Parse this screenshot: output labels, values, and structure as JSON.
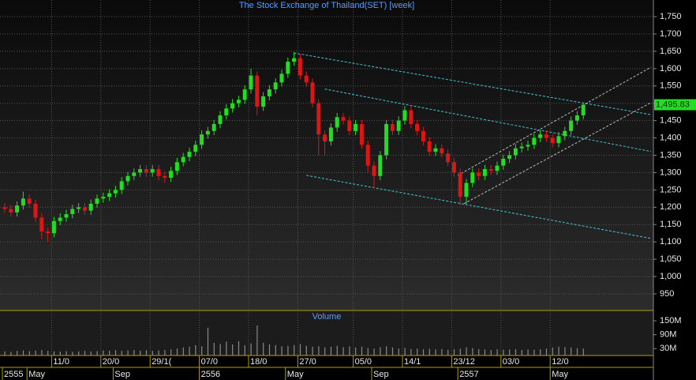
{
  "chart_data": {
    "type": "candlestick",
    "title": "The Stock Exchange of Thailand(SET) [week]",
    "up_color": "#22dd22",
    "down_color": "#dd1515",
    "categories": [
      null,
      null,
      null,
      null,
      null,
      null,
      null,
      null,
      "11/0",
      null,
      null,
      null,
      null,
      null,
      null,
      null,
      "20/0",
      null,
      null,
      null,
      null,
      null,
      null,
      null,
      "29/1(",
      null,
      null,
      null,
      null,
      null,
      null,
      null,
      "07/0",
      null,
      null,
      null,
      null,
      null,
      null,
      null,
      "18/0",
      null,
      null,
      null,
      null,
      null,
      null,
      null,
      "27/0",
      null,
      null,
      null,
      null,
      null,
      null,
      null,
      null,
      "05/0",
      null,
      null,
      null,
      null,
      null,
      null,
      null,
      "14/1",
      null,
      null,
      null,
      null,
      null,
      null,
      null,
      "23/12",
      null,
      null,
      null,
      null,
      null,
      null,
      null,
      "03/0",
      null,
      null,
      null,
      null,
      null,
      null,
      null,
      "12/0",
      null,
      null,
      null,
      null,
      null
    ],
    "periods": [
      "2555",
      null,
      null,
      null,
      "May",
      null,
      null,
      null,
      null,
      null,
      null,
      null,
      null,
      null,
      null,
      null,
      null,
      null,
      "Sep",
      null,
      null,
      null,
      null,
      null,
      null,
      null,
      null,
      null,
      null,
      null,
      null,
      null,
      "2556",
      null,
      null,
      null,
      null,
      null,
      null,
      null,
      null,
      null,
      null,
      null,
      null,
      null,
      "May",
      null,
      null,
      null,
      null,
      null,
      null,
      null,
      null,
      null,
      null,
      null,
      null,
      null,
      "Sep",
      null,
      null,
      null,
      null,
      null,
      null,
      null,
      null,
      null,
      null,
      null,
      null,
      null,
      "2557",
      null,
      null,
      null,
      null,
      null,
      null,
      null,
      null,
      null,
      null,
      null,
      null,
      null,
      null,
      "May",
      null,
      null,
      null,
      null,
      null
    ],
    "open": [
      1200,
      1195,
      1185,
      1205,
      1225,
      1210,
      1170,
      1130,
      1125,
      1160,
      1170,
      1180,
      1195,
      1200,
      1190,
      1210,
      1225,
      1230,
      1240,
      1250,
      1275,
      1290,
      1300,
      1310,
      1300,
      1310,
      1290,
      1285,
      1305,
      1330,
      1345,
      1360,
      1380,
      1410,
      1420,
      1440,
      1465,
      1485,
      1500,
      1510,
      1540,
      1580,
      1490,
      1520,
      1540,
      1560,
      1585,
      1620,
      1630,
      1580,
      1560,
      1500,
      1410,
      1390,
      1430,
      1460,
      1450,
      1420,
      1440,
      1380,
      1320,
      1290,
      1350,
      1440,
      1420,
      1450,
      1480,
      1440,
      1420,
      1390,
      1360,
      1370,
      1355,
      1330,
      1300,
      1230,
      1270,
      1300,
      1290,
      1310,
      1305,
      1320,
      1340,
      1350,
      1370,
      1375,
      1380,
      1400,
      1410,
      1400,
      1385,
      1405,
      1420,
      1450,
      1465
    ],
    "high": [
      1212,
      1207,
      1217,
      1245,
      1237,
      1222,
      1182,
      1142,
      1172,
      1182,
      1192,
      1207,
      1212,
      1212,
      1222,
      1237,
      1242,
      1252,
      1262,
      1287,
      1302,
      1312,
      1322,
      1322,
      1322,
      1322,
      1302,
      1317,
      1342,
      1357,
      1372,
      1392,
      1422,
      1432,
      1452,
      1477,
      1497,
      1512,
      1522,
      1552,
      1600,
      1592,
      1532,
      1552,
      1572,
      1597,
      1632,
      1648,
      1642,
      1592,
      1572,
      1512,
      1422,
      1442,
      1472,
      1472,
      1462,
      1452,
      1452,
      1392,
      1332,
      1362,
      1452,
      1452,
      1462,
      1492,
      1492,
      1452,
      1432,
      1402,
      1382,
      1382,
      1367,
      1342,
      1312,
      1282,
      1312,
      1312,
      1322,
      1322,
      1332,
      1352,
      1362,
      1382,
      1387,
      1392,
      1412,
      1422,
      1422,
      1412,
      1417,
      1432,
      1462,
      1477,
      1502
    ],
    "low": [
      1183,
      1173,
      1173,
      1193,
      1198,
      1158,
      1108,
      1100,
      1113,
      1148,
      1158,
      1168,
      1183,
      1178,
      1178,
      1198,
      1213,
      1218,
      1228,
      1238,
      1263,
      1278,
      1288,
      1288,
      1288,
      1278,
      1270,
      1273,
      1293,
      1318,
      1333,
      1348,
      1368,
      1398,
      1408,
      1428,
      1453,
      1473,
      1488,
      1498,
      1528,
      1465,
      1478,
      1508,
      1528,
      1548,
      1573,
      1608,
      1568,
      1548,
      1488,
      1350,
      1350,
      1378,
      1418,
      1438,
      1408,
      1408,
      1368,
      1300,
      1255,
      1278,
      1338,
      1408,
      1408,
      1438,
      1428,
      1408,
      1378,
      1348,
      1348,
      1343,
      1318,
      1288,
      1205,
      1210,
      1258,
      1278,
      1278,
      1293,
      1293,
      1308,
      1328,
      1338,
      1358,
      1363,
      1368,
      1388,
      1388,
      1373,
      1373,
      1393,
      1408,
      1438,
      1453
    ],
    "close": [
      1195,
      1185,
      1205,
      1225,
      1210,
      1170,
      1130,
      1125,
      1160,
      1170,
      1180,
      1195,
      1200,
      1190,
      1210,
      1225,
      1230,
      1240,
      1250,
      1275,
      1290,
      1300,
      1310,
      1300,
      1310,
      1290,
      1285,
      1305,
      1330,
      1345,
      1360,
      1380,
      1410,
      1420,
      1440,
      1465,
      1485,
      1500,
      1510,
      1540,
      1580,
      1490,
      1520,
      1540,
      1560,
      1585,
      1620,
      1630,
      1580,
      1560,
      1500,
      1410,
      1390,
      1430,
      1460,
      1450,
      1420,
      1440,
      1380,
      1320,
      1290,
      1350,
      1440,
      1420,
      1450,
      1480,
      1440,
      1420,
      1390,
      1360,
      1370,
      1355,
      1330,
      1300,
      1230,
      1270,
      1300,
      1290,
      1310,
      1305,
      1320,
      1340,
      1350,
      1370,
      1375,
      1380,
      1400,
      1410,
      1400,
      1385,
      1405,
      1420,
      1450,
      1465,
      1495.83
    ],
    "last_price": {
      "value": 1495.83,
      "label": "1,495.83"
    },
    "ylim": [
      902,
      1798
    ],
    "yticks": [
      {
        "value": 1750,
        "label": "1,750"
      },
      {
        "value": 1700,
        "label": "1,700"
      },
      {
        "value": 1650,
        "label": "1,650"
      },
      {
        "value": 1600,
        "label": "1,600"
      },
      {
        "value": 1550,
        "label": "1,550"
      },
      {
        "value": 1500,
        "label": "1,500"
      },
      {
        "value": 1450,
        "label": "1,450"
      },
      {
        "value": 1400,
        "label": "1,400"
      },
      {
        "value": 1350,
        "label": "1,350"
      },
      {
        "value": 1300,
        "label": "1,300"
      },
      {
        "value": 1250,
        "label": "1,250"
      },
      {
        "value": 1200,
        "label": "1,200"
      },
      {
        "value": 1150,
        "label": "1,150"
      },
      {
        "value": 1100,
        "label": "1,100"
      },
      {
        "value": 1050,
        "label": "1,050"
      },
      {
        "value": 1000,
        "label": "1,000"
      },
      950
    ],
    "grid": true,
    "trend_lines": [
      {
        "color": "#3cc8d8",
        "start": [
          47,
          1645
        ],
        "end": [
          105,
          1467
        ]
      },
      {
        "color": "#3cc8d8",
        "start": [
          52,
          1541
        ],
        "end": [
          105,
          1361
        ]
      },
      {
        "color": "#3cc8d8",
        "start": [
          49,
          1292
        ],
        "end": [
          105,
          1110
        ]
      },
      {
        "color": "#bbbbbb",
        "start": [
          73.6,
          1292
        ],
        "end": [
          105,
          1604
        ]
      },
      {
        "color": "#bbbbbb",
        "start": [
          74.6,
          1210
        ],
        "end": [
          105,
          1502
        ]
      }
    ],
    "volume": {
      "label": "Volume",
      "color": "#8a8a8a",
      "values": [
        18,
        16,
        20,
        22,
        19,
        21,
        24,
        20,
        18,
        17,
        19,
        16,
        18,
        20,
        17,
        19,
        22,
        21,
        23,
        20,
        22,
        24,
        21,
        23,
        20,
        22,
        24,
        26,
        30,
        35,
        38,
        45,
        40,
        120,
        55,
        50,
        60,
        48,
        62,
        45,
        52,
        130,
        55,
        48,
        45,
        40,
        42,
        45,
        50,
        42,
        38,
        40,
        35,
        38,
        42,
        36,
        40,
        35,
        38,
        32,
        30,
        36,
        40,
        35,
        30,
        33,
        28,
        30,
        27,
        29,
        26,
        28,
        25,
        27,
        30,
        35,
        32,
        28,
        26,
        24,
        27,
        25,
        26,
        28,
        24,
        26,
        25,
        27,
        30,
        35,
        38,
        36,
        34,
        32,
        30
      ],
      "ylim": [
        0,
        195
      ],
      "yticks": [
        {
          "value": 150,
          "label": "150M"
        },
        {
          "value": 90,
          "label": "90M"
        },
        {
          "value": 30,
          "label": "30M"
        }
      ]
    }
  }
}
